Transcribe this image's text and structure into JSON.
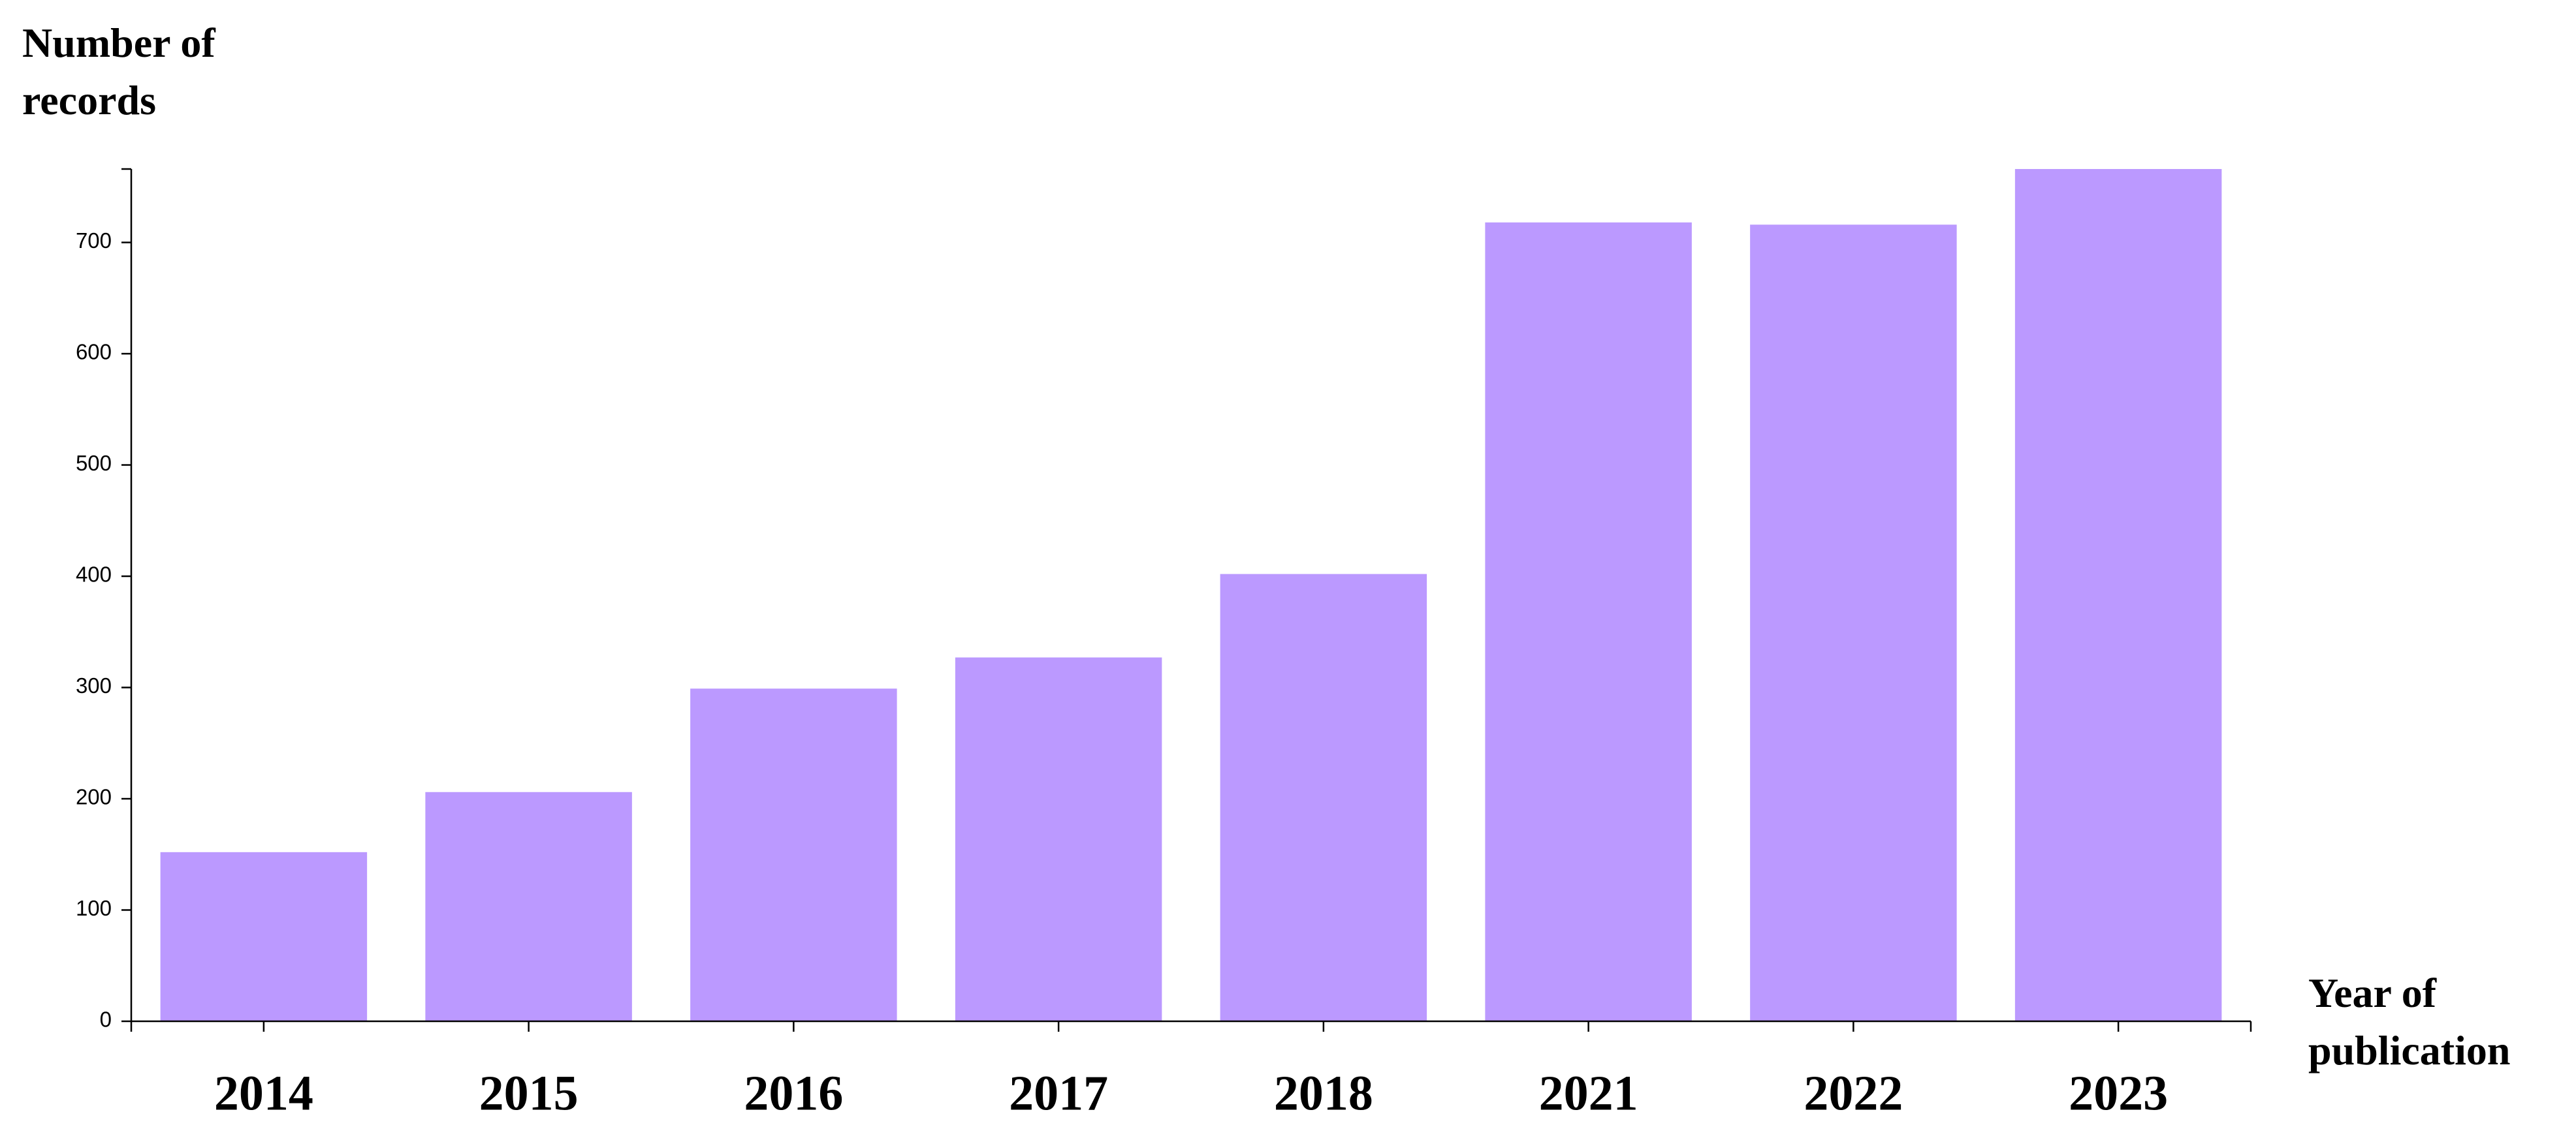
{
  "chart_data": {
    "type": "bar",
    "x_label": "Year of publication",
    "y_label": "Number of records",
    "categories": [
      "2014",
      "2015",
      "2016",
      "2017",
      "2018",
      "2021",
      "2022",
      "2023"
    ],
    "values": [
      152,
      206,
      299,
      327,
      402,
      718,
      716,
      766
    ],
    "color": "#bb99ff",
    "ylim": [
      0,
      766
    ],
    "yticks": [
      0,
      100,
      200,
      300,
      400,
      500,
      600,
      700
    ],
    "grid": false
  }
}
